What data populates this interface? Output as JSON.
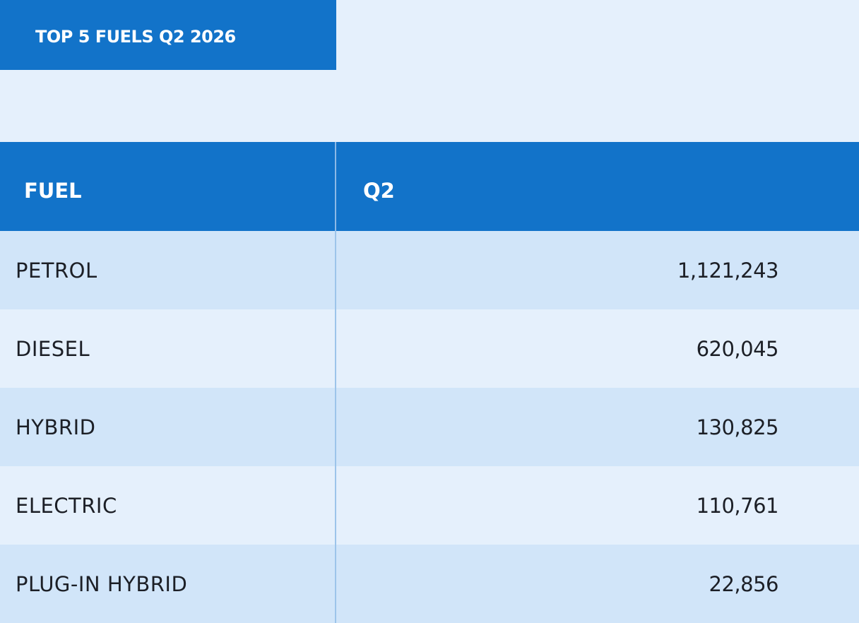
{
  "title": "TOP 5 FUELS Q2 2026",
  "colors": {
    "header_blue": "#1273c9",
    "row_light": "#d1e5f9",
    "row_lighter": "#e5f0fc",
    "text_dark": "#1c1f26"
  },
  "table": {
    "headers": [
      "FUEL",
      "Q2"
    ],
    "rows": [
      {
        "fuel": "PETROL",
        "q2": "1,121,243"
      },
      {
        "fuel": "DIESEL",
        "q2": "620,045"
      },
      {
        "fuel": "HYBRID",
        "q2": "130,825"
      },
      {
        "fuel": "ELECTRIC",
        "q2": "110,761"
      },
      {
        "fuel": "PLUG-IN HYBRID",
        "q2": "22,856"
      }
    ]
  },
  "chart_data": {
    "type": "table",
    "title": "TOP 5 FUELS Q2 2026",
    "columns": [
      "FUEL",
      "Q2"
    ],
    "categories": [
      "PETROL",
      "DIESEL",
      "HYBRID",
      "ELECTRIC",
      "PLUG-IN HYBRID"
    ],
    "values": [
      1121243,
      620045,
      130825,
      110761,
      22856
    ]
  }
}
